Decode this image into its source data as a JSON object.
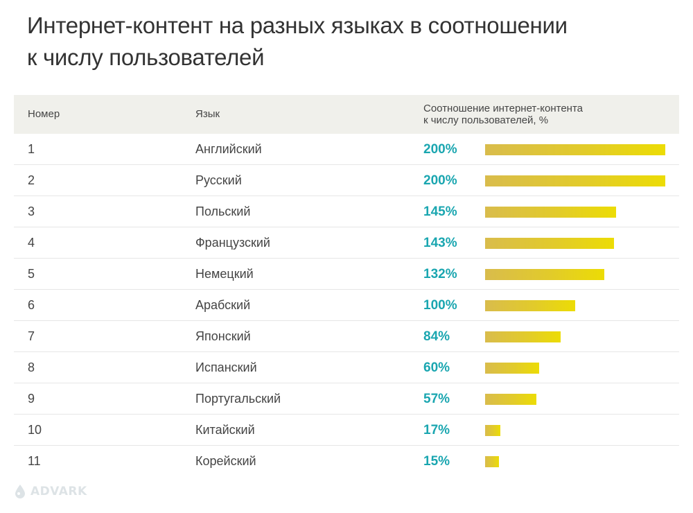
{
  "title": {
    "line1": "Интернет-контент на разных языках в соотношении",
    "line2": "к числу пользователей"
  },
  "header": {
    "number": "Номер",
    "language": "Язык",
    "ratio_line1": "Соотношение интернет-контента",
    "ratio_line2": "к числу пользователей, %"
  },
  "rows": [
    {
      "num": "1",
      "lang": "Английский",
      "label": "200%"
    },
    {
      "num": "2",
      "lang": "Русский",
      "label": "200%"
    },
    {
      "num": "3",
      "lang": "Польский",
      "label": "145%"
    },
    {
      "num": "4",
      "lang": "Французский",
      "label": "143%"
    },
    {
      "num": "5",
      "lang": "Немецкий",
      "label": "132%"
    },
    {
      "num": "6",
      "lang": "Арабский",
      "label": "100%"
    },
    {
      "num": "7",
      "lang": "Японский",
      "label": "84%"
    },
    {
      "num": "8",
      "lang": "Испанский",
      "label": "60%"
    },
    {
      "num": "9",
      "lang": "Португальский",
      "label": "57%"
    },
    {
      "num": "10",
      "lang": "Китайский",
      "label": "17%"
    },
    {
      "num": "11",
      "lang": "Корейский",
      "label": "15%"
    }
  ],
  "chart_data": {
    "type": "bar",
    "title": "Интернет-контент на разных языках в соотношении к числу пользователей",
    "categories": [
      "Английский",
      "Русский",
      "Польский",
      "Французский",
      "Немецкий",
      "Арабский",
      "Японский",
      "Испанский",
      "Португальский",
      "Китайский",
      "Корейский"
    ],
    "values": [
      200,
      200,
      145,
      143,
      132,
      100,
      84,
      60,
      57,
      17,
      15
    ],
    "xlabel": "",
    "ylabel": "Соотношение интернет-контента к числу пользователей, %",
    "ylim": [
      0,
      200
    ],
    "orientation": "horizontal"
  },
  "logo": {
    "text": "ADVARK",
    "icon": "drop-icon"
  },
  "colors": {
    "value": "#1aa6b0",
    "bar_start": "#d9bc4c",
    "bar_end": "#ecdc05",
    "header_bg": "#f0f0eb"
  }
}
